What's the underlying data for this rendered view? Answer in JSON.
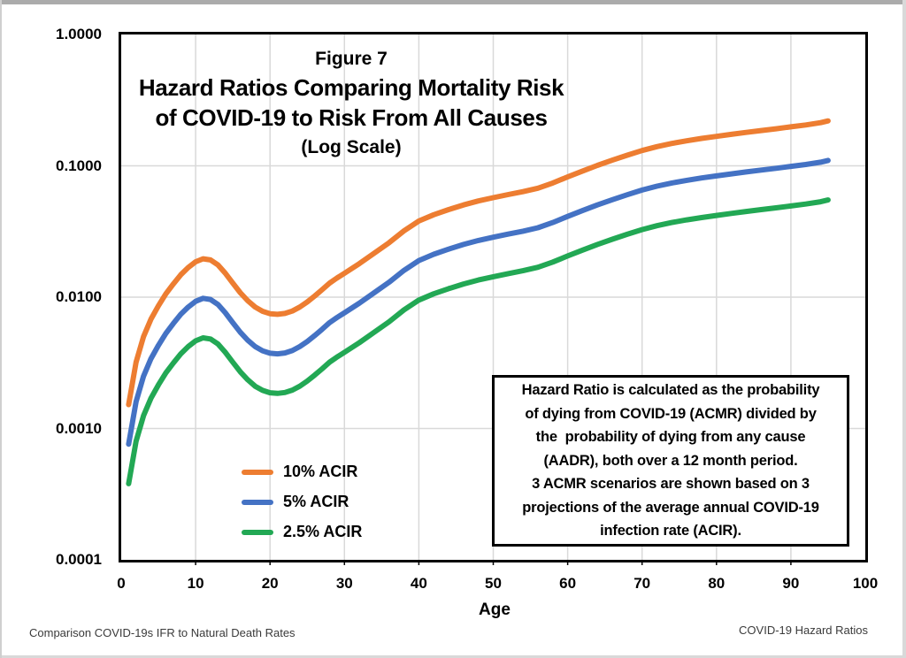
{
  "header": {
    "figure_label": "Figure 7",
    "title_line1": "Hazard Ratios Comparing Mortality Risk",
    "title_line2": "of COVID-19 to Risk From All Causes",
    "subtitle": "(Log Scale)"
  },
  "legend": {
    "items": [
      {
        "label": "10% ACIR",
        "color": "#ED7D31"
      },
      {
        "label": "5% ACIR",
        "color": "#4472C4"
      },
      {
        "label": "2.5% ACIR",
        "color": "#22A854"
      }
    ]
  },
  "note": {
    "lines": [
      "Hazard Ratio is calculated as the probability",
      "of dying from COVID-19 (ACMR) divided by",
      "the  probability of dying from any cause",
      "(AADR), both over a 12 month period.",
      "3 ACMR scenarios are shown based on 3",
      "projections of the average annual COVID-19",
      "infection rate (ACIR)."
    ]
  },
  "footer": {
    "left": "Comparison COVID-19s IFR to Natural Death Rates",
    "right": "COVID-19 Hazard Ratios"
  },
  "chart_data": {
    "type": "line",
    "title": "Figure 7 - Hazard Ratios Comparing Mortality Risk of COVID-19 to Risk From All Causes (Log Scale)",
    "xlabel": "Age",
    "ylabel": "",
    "grid": true,
    "legend_position": "inside-lower-left",
    "x_axis": {
      "min": 0,
      "max": 100,
      "ticks": [
        0,
        10,
        20,
        30,
        40,
        50,
        60,
        70,
        80,
        90,
        100
      ],
      "gridlines": [
        10,
        20,
        30,
        40,
        50,
        60,
        70,
        80,
        90
      ]
    },
    "y_axis": {
      "scale": "log",
      "min": 0.0001,
      "max": 1.0,
      "tick_values": [
        1.0,
        0.1,
        0.01,
        0.001,
        0.0001
      ],
      "tick_labels": [
        "1.0000",
        "0.1000",
        "0.0100",
        "0.0010",
        "0.0001"
      ],
      "gridline_values": [
        0.1,
        0.01,
        0.001
      ]
    },
    "x": [
      1,
      2,
      3,
      4,
      5,
      6,
      7,
      8,
      9,
      10,
      11,
      12,
      13,
      14,
      15,
      16,
      17,
      18,
      19,
      20,
      21,
      22,
      23,
      24,
      25,
      26,
      27,
      28,
      29,
      30,
      32,
      34,
      36,
      38,
      40,
      42,
      44,
      46,
      48,
      50,
      52,
      54,
      56,
      58,
      60,
      62,
      64,
      66,
      68,
      70,
      72,
      74,
      76,
      78,
      80,
      82,
      84,
      86,
      88,
      90,
      92,
      94,
      95
    ],
    "series": [
      {
        "name": "10% ACIR",
        "color": "#ED7D31",
        "values": [
          0.00152,
          0.0032,
          0.005,
          0.0068,
          0.0086,
          0.0106,
          0.0126,
          0.0148,
          0.0168,
          0.0186,
          0.0196,
          0.0192,
          0.0176,
          0.0152,
          0.0128,
          0.0108,
          0.0094,
          0.0084,
          0.0078,
          0.00748,
          0.0074,
          0.00752,
          0.00784,
          0.0084,
          0.0092,
          0.0102,
          0.0114,
          0.0128,
          0.014,
          0.0152,
          0.018,
          0.0216,
          0.026,
          0.032,
          0.038,
          0.0424,
          0.0464,
          0.0504,
          0.054,
          0.0572,
          0.0604,
          0.0636,
          0.0676,
          0.074,
          0.0824,
          0.0912,
          0.1008,
          0.1104,
          0.1204,
          0.1308,
          0.14,
          0.148,
          0.1552,
          0.1616,
          0.1676,
          0.1736,
          0.1796,
          0.1856,
          0.1916,
          0.198,
          0.2048,
          0.2132,
          0.22
        ]
      },
      {
        "name": "5% ACIR",
        "color": "#4472C4",
        "values": [
          0.00076,
          0.0016,
          0.0025,
          0.0034,
          0.0043,
          0.0053,
          0.0063,
          0.0074,
          0.0084,
          0.0093,
          0.0098,
          0.0096,
          0.0088,
          0.0076,
          0.0064,
          0.0054,
          0.0047,
          0.0042,
          0.0039,
          0.00374,
          0.0037,
          0.00376,
          0.00392,
          0.0042,
          0.0046,
          0.0051,
          0.0057,
          0.0064,
          0.007,
          0.0076,
          0.009,
          0.0108,
          0.013,
          0.016,
          0.019,
          0.0212,
          0.0232,
          0.0252,
          0.027,
          0.0286,
          0.0302,
          0.0318,
          0.0338,
          0.037,
          0.0412,
          0.0456,
          0.0504,
          0.0552,
          0.0602,
          0.0654,
          0.07,
          0.074,
          0.0776,
          0.0808,
          0.0838,
          0.0868,
          0.0898,
          0.0928,
          0.0958,
          0.099,
          0.1024,
          0.1066,
          0.11
        ]
      },
      {
        "name": "2.5% ACIR",
        "color": "#22A854",
        "values": [
          0.00038,
          0.0008,
          0.00125,
          0.0017,
          0.00215,
          0.00265,
          0.00315,
          0.0037,
          0.0042,
          0.00465,
          0.0049,
          0.0048,
          0.0044,
          0.0038,
          0.0032,
          0.0027,
          0.00235,
          0.0021,
          0.00195,
          0.00187,
          0.00185,
          0.00188,
          0.00196,
          0.0021,
          0.0023,
          0.00255,
          0.00285,
          0.0032,
          0.0035,
          0.0038,
          0.0045,
          0.0054,
          0.0065,
          0.008,
          0.0095,
          0.0106,
          0.0116,
          0.0126,
          0.0135,
          0.0143,
          0.0151,
          0.0159,
          0.0169,
          0.0185,
          0.0206,
          0.0228,
          0.0252,
          0.0276,
          0.0301,
          0.0327,
          0.035,
          0.037,
          0.0388,
          0.0404,
          0.0419,
          0.0434,
          0.0449,
          0.0464,
          0.0479,
          0.0495,
          0.0512,
          0.0533,
          0.055
        ]
      }
    ],
    "style": {
      "gridline_color": "#D9D9D9",
      "axis_color": "#000000",
      "line_width": 6
    }
  }
}
